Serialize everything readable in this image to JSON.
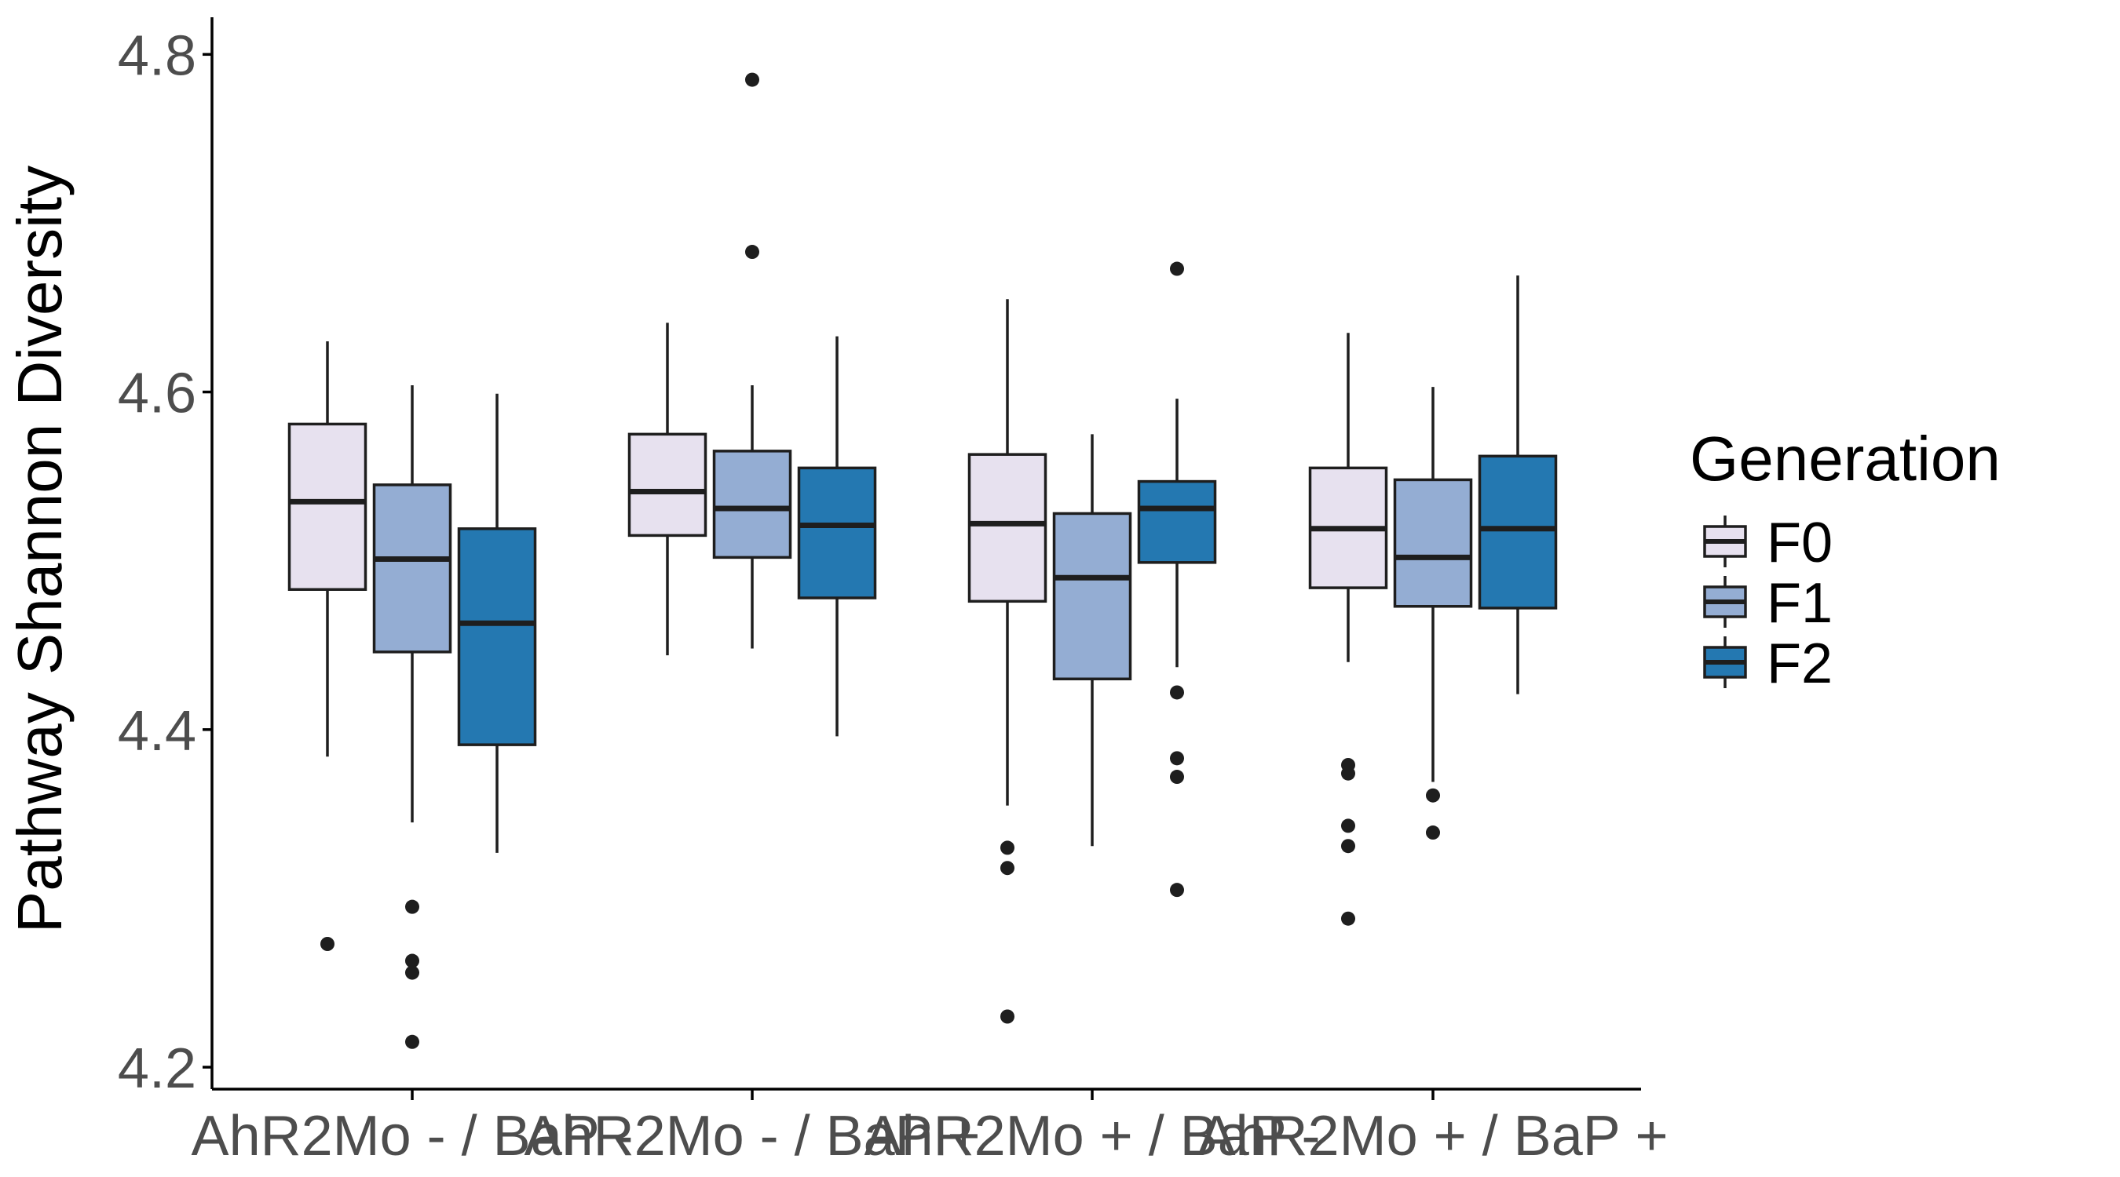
{
  "chart_data": {
    "type": "boxplot",
    "xlabel": "",
    "ylabel": "Pathway Shannon Diversity",
    "ylim": [
      4.187,
      4.822
    ],
    "yticks": [
      4.2,
      4.4,
      4.6,
      4.8
    ],
    "ytick_labels": [
      "4.2",
      "4.4",
      "4.6",
      "4.8"
    ],
    "grid": false,
    "legend_position": "right",
    "categories": [
      "AhR2Mo - / BaP -",
      "AhR2Mo - / BaP +",
      "AhR2Mo + / BaP -",
      "AhR2Mo + / BaP +"
    ],
    "legend": {
      "title": "Generation",
      "items": [
        {
          "label": "F0",
          "color": "#e7e1ef"
        },
        {
          "label": "F1",
          "color": "#94add3"
        },
        {
          "label": "F2",
          "color": "#2478b1"
        }
      ]
    },
    "series": [
      {
        "name": "F0",
        "color": "#e7e1ef",
        "boxes": [
          {
            "category": "AhR2Mo - / BaP -",
            "whisker_low": 4.384,
            "q1": 4.483,
            "median": 4.535,
            "q3": 4.581,
            "whisker_high": 4.63,
            "outliers": [
              4.273
            ]
          },
          {
            "category": "AhR2Mo - / BaP +",
            "whisker_low": 4.444,
            "q1": 4.515,
            "median": 4.541,
            "q3": 4.575,
            "whisker_high": 4.641,
            "outliers": []
          },
          {
            "category": "AhR2Mo + / BaP -",
            "whisker_low": 4.355,
            "q1": 4.476,
            "median": 4.522,
            "q3": 4.563,
            "whisker_high": 4.655,
            "outliers": [
              4.33,
              4.318,
              4.23
            ]
          },
          {
            "category": "AhR2Mo + / BaP +",
            "whisker_low": 4.44,
            "q1": 4.484,
            "median": 4.519,
            "q3": 4.555,
            "whisker_high": 4.635,
            "outliers": [
              4.379,
              4.374,
              4.343,
              4.331,
              4.288
            ]
          }
        ]
      },
      {
        "name": "F1",
        "color": "#94add3",
        "boxes": [
          {
            "category": "AhR2Mo - / BaP -",
            "whisker_low": 4.345,
            "q1": 4.446,
            "median": 4.501,
            "q3": 4.545,
            "whisker_high": 4.604,
            "outliers": [
              4.295,
              4.263,
              4.256,
              4.215
            ]
          },
          {
            "category": "AhR2Mo - / BaP +",
            "whisker_low": 4.448,
            "q1": 4.502,
            "median": 4.531,
            "q3": 4.565,
            "whisker_high": 4.604,
            "outliers": [
              4.785,
              4.683
            ]
          },
          {
            "category": "AhR2Mo + / BaP -",
            "whisker_low": 4.331,
            "q1": 4.43,
            "median": 4.49,
            "q3": 4.528,
            "whisker_high": 4.575,
            "outliers": []
          },
          {
            "category": "AhR2Mo + / BaP +",
            "whisker_low": 4.369,
            "q1": 4.473,
            "median": 4.502,
            "q3": 4.548,
            "whisker_high": 4.603,
            "outliers": [
              4.361,
              4.339
            ]
          }
        ]
      },
      {
        "name": "F2",
        "color": "#2478b1",
        "boxes": [
          {
            "category": "AhR2Mo - / BaP -",
            "whisker_low": 4.327,
            "q1": 4.391,
            "median": 4.463,
            "q3": 4.519,
            "whisker_high": 4.599,
            "outliers": []
          },
          {
            "category": "AhR2Mo - / BaP +",
            "whisker_low": 4.396,
            "q1": 4.478,
            "median": 4.521,
            "q3": 4.555,
            "whisker_high": 4.633,
            "outliers": []
          },
          {
            "category": "AhR2Mo + / BaP -",
            "whisker_low": 4.437,
            "q1": 4.499,
            "median": 4.531,
            "q3": 4.547,
            "whisker_high": 4.596,
            "outliers": [
              4.673,
              4.422,
              4.383,
              4.372,
              4.305
            ]
          },
          {
            "category": "AhR2Mo + / BaP +",
            "whisker_low": 4.421,
            "q1": 4.472,
            "median": 4.519,
            "q3": 4.562,
            "whisker_high": 4.669,
            "outliers": []
          }
        ]
      }
    ]
  }
}
